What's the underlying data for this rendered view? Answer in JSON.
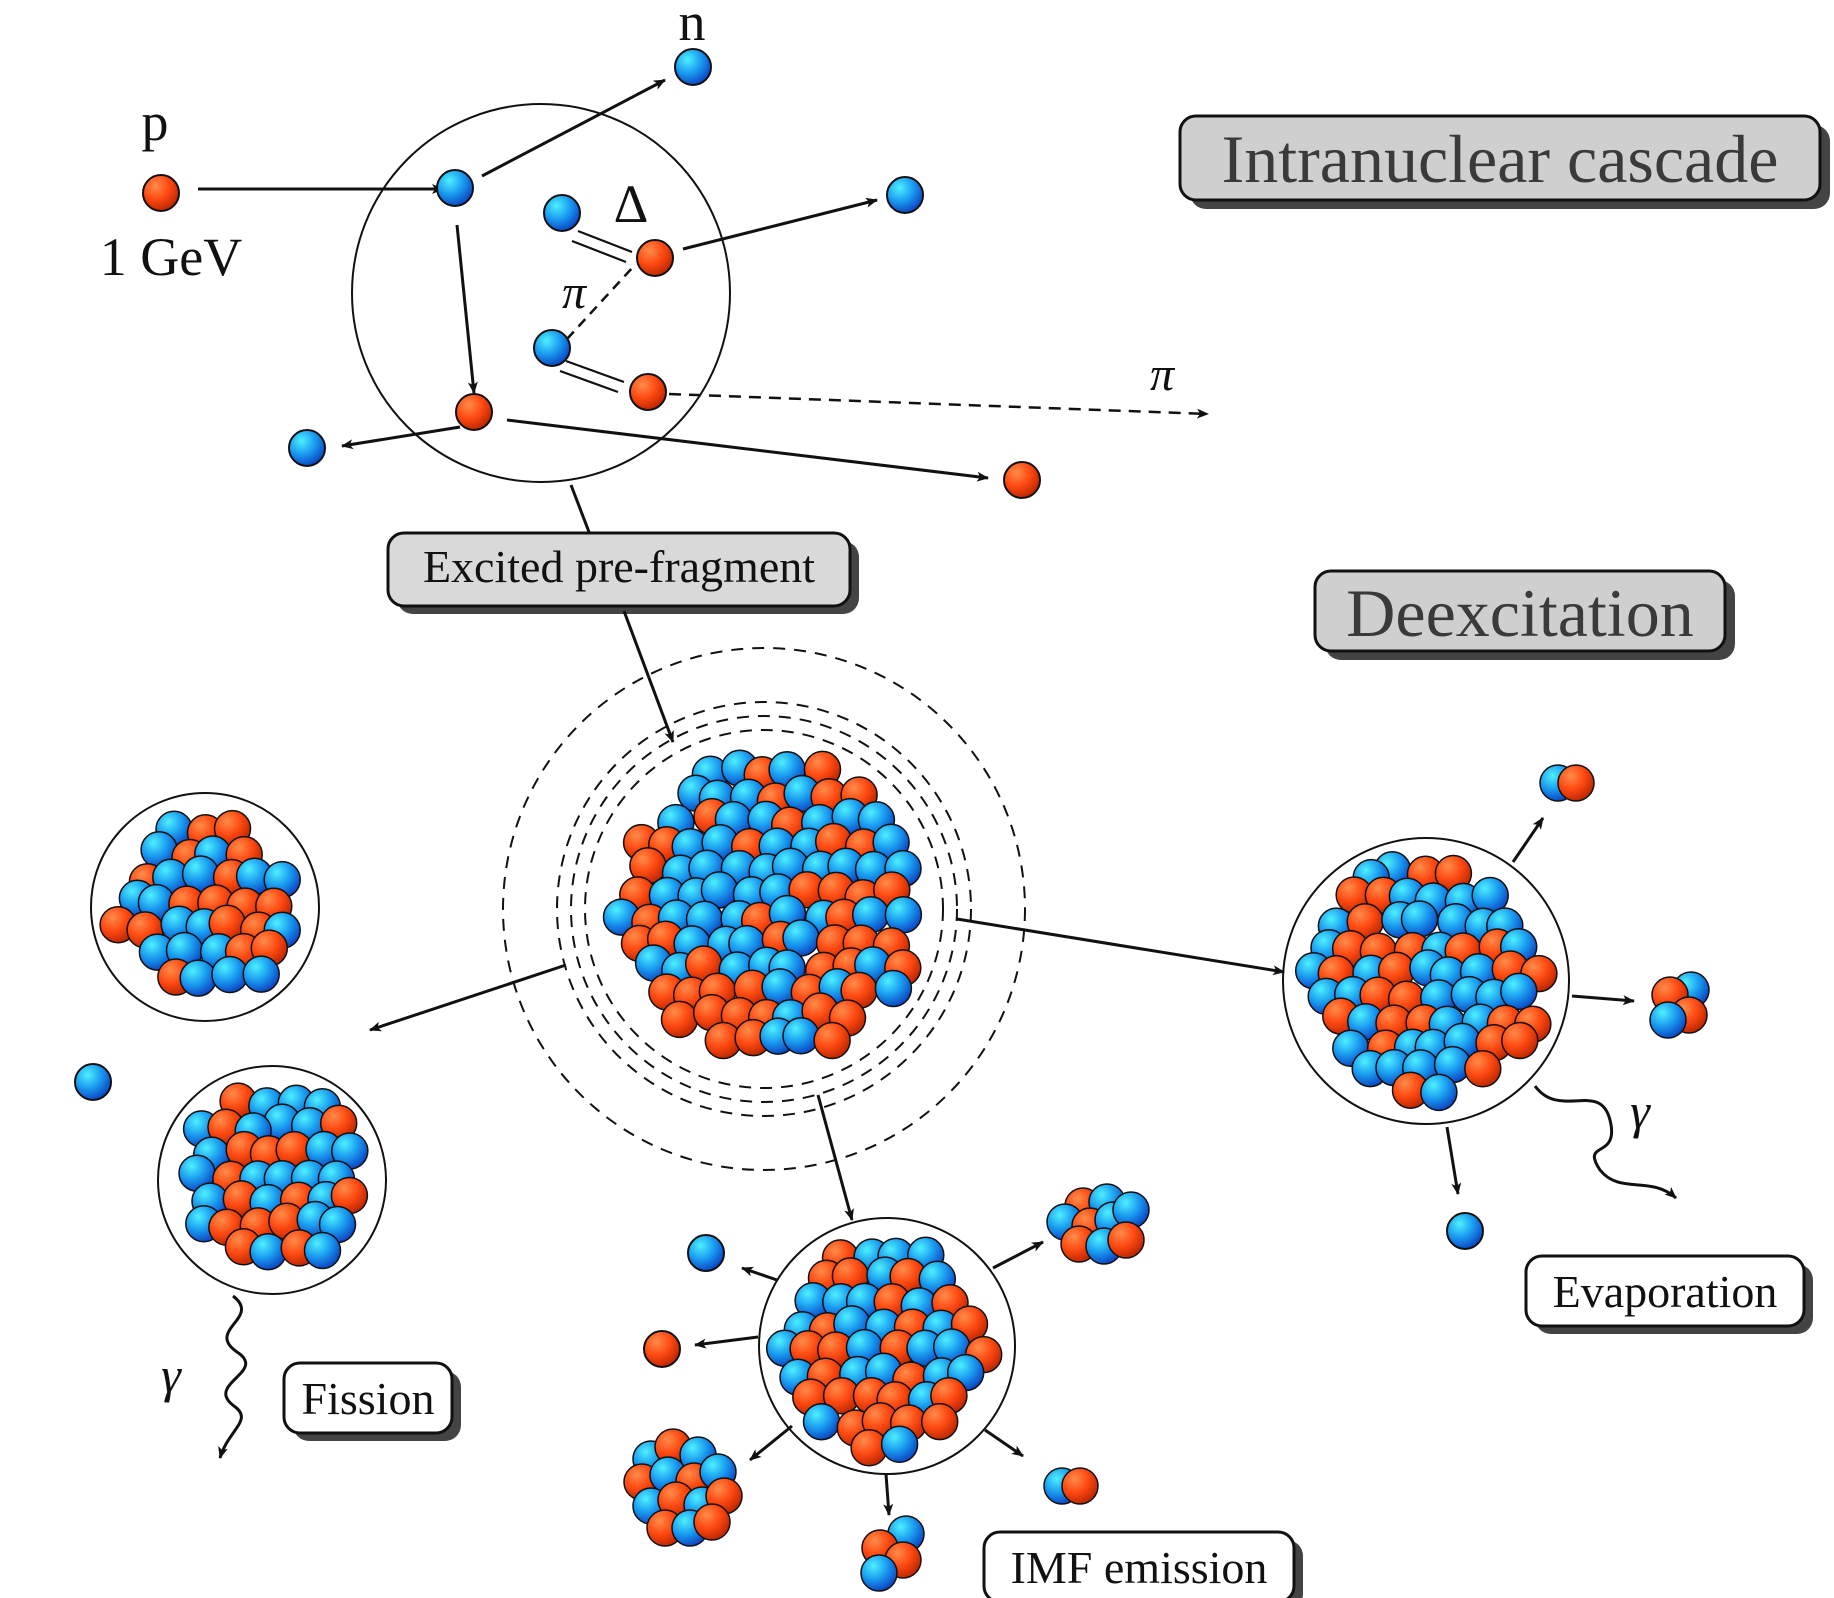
{
  "colors": {
    "proton_dark": "#c62a00",
    "proton_light": "#ff6a2a",
    "neutron_dark": "#0a55c8",
    "neutron_light": "#29d8ff",
    "title_box": "#cfcfcf",
    "label_box": "#ffffff",
    "shadow": "#444444",
    "line": "#111111"
  },
  "titles": {
    "cascade": "Intranuclear cascade",
    "deexcitation": "Deexcitation"
  },
  "labels": {
    "projectile": "p",
    "energy": "1 GeV",
    "neutron": "n",
    "delta": "Δ",
    "pion_inner": "π",
    "pion_outer": "π",
    "prefragment": "Excited pre-fragment",
    "fission": "Fission",
    "gamma_fission": "γ",
    "imf": "IMF emission",
    "evaporation": "Evaporation",
    "gamma_evap": "γ"
  },
  "icons": {
    "proton": "red-sphere",
    "neutron": "blue-sphere"
  }
}
